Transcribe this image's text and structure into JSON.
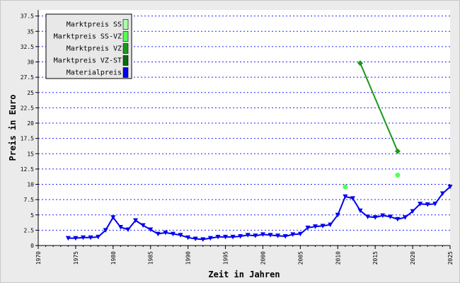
{
  "chart_data": {
    "type": "line",
    "title": "",
    "xlabel": "Zeit in Jahren",
    "ylabel": "Preis in Euro",
    "xlim": [
      1970,
      2025
    ],
    "ylim": [
      0,
      38.5
    ],
    "x_ticks": [
      "1970",
      "1975",
      "1980",
      "1985",
      "1990",
      "1995",
      "2000",
      "2005",
      "2010",
      "2015",
      "2020",
      "2025"
    ],
    "y_ticks": [
      "0",
      "2.5",
      "5",
      "7.5",
      "10",
      "12.5",
      "15",
      "17.5",
      "20",
      "22.5",
      "25",
      "27.5",
      "30",
      "32.5",
      "35",
      "37.5"
    ],
    "grid": "horizontal dotted, blue",
    "legend_position": "top-left",
    "series": [
      {
        "name": "Marktpreis SS",
        "color": "#aaffaa",
        "marker": "none",
        "points": []
      },
      {
        "name": "Marktpreis SS-VZ",
        "color": "#55ff55",
        "marker": "circle",
        "points": [
          [
            2011,
            9.6
          ],
          [
            2018,
            11.5
          ]
        ]
      },
      {
        "name": "Marktpreis VZ",
        "color": "#1a9a1a",
        "marker": "diamond",
        "points": [
          [
            2013,
            29.8
          ],
          [
            2018,
            15.4
          ]
        ]
      },
      {
        "name": "Marktpreis VZ-ST",
        "color": "#0b6a0b",
        "marker": "none",
        "points": []
      },
      {
        "name": "Materialpreis",
        "color": "#0000ee",
        "marker": "triangle-down",
        "points": [
          [
            1974,
            1.2
          ],
          [
            1975,
            1.2
          ],
          [
            1976,
            1.3
          ],
          [
            1977,
            1.3
          ],
          [
            1978,
            1.4
          ],
          [
            1979,
            2.5
          ],
          [
            1980,
            4.6
          ],
          [
            1981,
            3.0
          ],
          [
            1982,
            2.6
          ],
          [
            1983,
            4.1
          ],
          [
            1984,
            3.3
          ],
          [
            1985,
            2.6
          ],
          [
            1986,
            1.9
          ],
          [
            1987,
            2.1
          ],
          [
            1988,
            1.9
          ],
          [
            1989,
            1.7
          ],
          [
            1990,
            1.3
          ],
          [
            1991,
            1.1
          ],
          [
            1992,
            1.0
          ],
          [
            1993,
            1.2
          ],
          [
            1994,
            1.4
          ],
          [
            1995,
            1.4
          ],
          [
            1996,
            1.4
          ],
          [
            1997,
            1.5
          ],
          [
            1998,
            1.7
          ],
          [
            1999,
            1.6
          ],
          [
            2000,
            1.8
          ],
          [
            2001,
            1.7
          ],
          [
            2002,
            1.6
          ],
          [
            2003,
            1.5
          ],
          [
            2004,
            1.8
          ],
          [
            2005,
            1.9
          ],
          [
            2006,
            2.9
          ],
          [
            2007,
            3.1
          ],
          [
            2008,
            3.2
          ],
          [
            2009,
            3.4
          ],
          [
            2010,
            5.0
          ],
          [
            2011,
            8.0
          ],
          [
            2012,
            7.7
          ],
          [
            2013,
            5.7
          ],
          [
            2014,
            4.7
          ],
          [
            2015,
            4.6
          ],
          [
            2016,
            4.9
          ],
          [
            2017,
            4.7
          ],
          [
            2018,
            4.3
          ],
          [
            2019,
            4.6
          ],
          [
            2020,
            5.6
          ],
          [
            2021,
            6.8
          ],
          [
            2022,
            6.7
          ],
          [
            2023,
            6.8
          ],
          [
            2024,
            8.5
          ],
          [
            2025,
            9.6
          ]
        ]
      }
    ]
  }
}
